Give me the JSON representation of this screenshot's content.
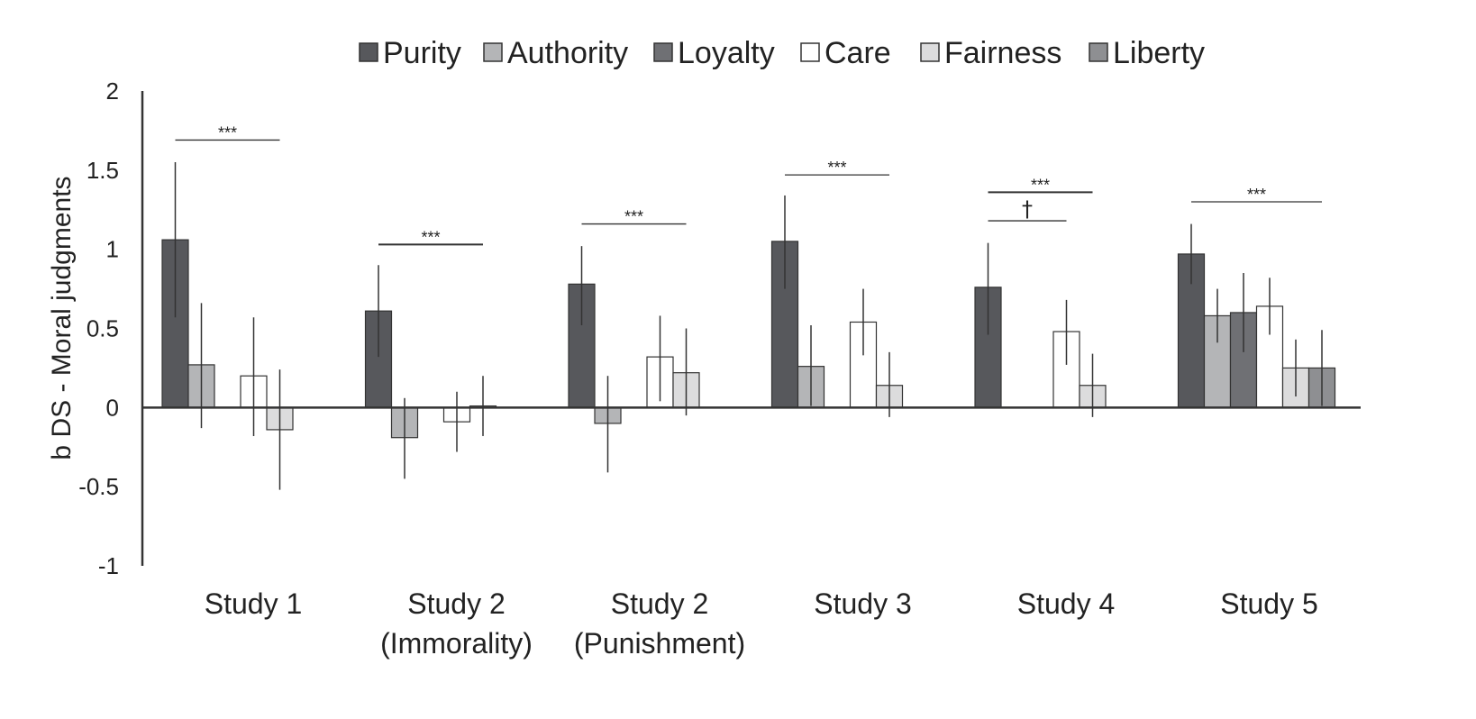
{
  "chart_data": {
    "type": "bar",
    "title": "",
    "xlabel": "",
    "ylabel": "b DS - Moral judgments",
    "ylim": [
      -1,
      2
    ],
    "yticks": [
      {
        "value": -1,
        "label": "-1"
      },
      {
        "value": -0.5,
        "label": "-0.5"
      },
      {
        "value": 0,
        "label": "0"
      },
      {
        "value": 0.5,
        "label": "0.5"
      },
      {
        "value": 1,
        "label": "1"
      },
      {
        "value": 1.5,
        "label": "1.5"
      },
      {
        "value": 2,
        "label": "2"
      }
    ],
    "legend_position": "top",
    "categories": [
      [
        "Study 1"
      ],
      [
        "Study 2",
        "(Immorality)"
      ],
      [
        "Study 2",
        "(Punishment)"
      ],
      [
        "Study 3"
      ],
      [
        "Study 4"
      ],
      [
        "Study 5"
      ]
    ],
    "series": [
      {
        "name": "Purity",
        "color": "#57585c",
        "values": [
          1.06,
          0.61,
          0.78,
          1.05,
          0.76,
          0.97
        ],
        "ci_low": [
          0.57,
          0.32,
          0.52,
          0.75,
          0.46,
          0.78
        ],
        "ci_high": [
          1.55,
          0.9,
          1.02,
          1.34,
          1.04,
          1.16
        ]
      },
      {
        "name": "Authority",
        "color": "#b4b5b7",
        "values": [
          0.27,
          -0.19,
          -0.1,
          0.26,
          null,
          0.58
        ],
        "ci_low": [
          -0.13,
          -0.45,
          -0.41,
          0.01,
          null,
          0.41
        ],
        "ci_high": [
          0.66,
          0.06,
          0.2,
          0.52,
          null,
          0.75
        ]
      },
      {
        "name": "Loyalty",
        "color": "#6f7074",
        "values": [
          null,
          null,
          null,
          null,
          null,
          0.6
        ],
        "ci_low": [
          null,
          null,
          null,
          null,
          null,
          0.35
        ],
        "ci_high": [
          null,
          null,
          null,
          null,
          null,
          0.85
        ]
      },
      {
        "name": "Care",
        "color": "#ffffff",
        "values": [
          0.2,
          -0.09,
          0.32,
          0.54,
          0.48,
          0.64
        ],
        "ci_low": [
          -0.18,
          -0.28,
          0.04,
          0.33,
          0.27,
          0.46
        ],
        "ci_high": [
          0.57,
          0.1,
          0.58,
          0.75,
          0.68,
          0.82
        ]
      },
      {
        "name": "Fairness",
        "color": "#dcdcdd",
        "values": [
          -0.14,
          0.01,
          0.22,
          0.14,
          0.14,
          0.25
        ],
        "ci_low": [
          -0.52,
          -0.18,
          -0.05,
          -0.06,
          -0.06,
          0.07
        ],
        "ci_high": [
          0.24,
          0.2,
          0.5,
          0.35,
          0.34,
          0.43
        ]
      },
      {
        "name": "Liberty",
        "color": "#8e8f92",
        "values": [
          null,
          null,
          null,
          null,
          null,
          0.25
        ],
        "ci_low": [
          null,
          null,
          null,
          null,
          null,
          0.01
        ],
        "ci_high": [
          null,
          null,
          null,
          null,
          null,
          0.49
        ]
      }
    ],
    "annotations": [
      {
        "category": 0,
        "text": "***",
        "y": 1.69,
        "from_series": 0,
        "to_series": 4,
        "bold": false
      },
      {
        "category": 1,
        "text": "***",
        "y": 1.03,
        "from_series": 0,
        "to_series": 4,
        "bold": true
      },
      {
        "category": 2,
        "text": "***",
        "y": 1.16,
        "from_series": 0,
        "to_series": 4,
        "bold": false
      },
      {
        "category": 3,
        "text": "***",
        "y": 1.47,
        "from_series": 0,
        "to_series": 4,
        "bold": false
      },
      {
        "category": 4,
        "text": "***",
        "y": 1.36,
        "from_series": 0,
        "to_series": 4,
        "bold": true
      },
      {
        "category": 4,
        "text": "†",
        "y": 1.18,
        "from_series": 0,
        "to_series": 3,
        "bold": false
      },
      {
        "category": 5,
        "text": "***",
        "y": 1.3,
        "from_series": 0,
        "to_series": 5,
        "bold": false
      }
    ]
  }
}
